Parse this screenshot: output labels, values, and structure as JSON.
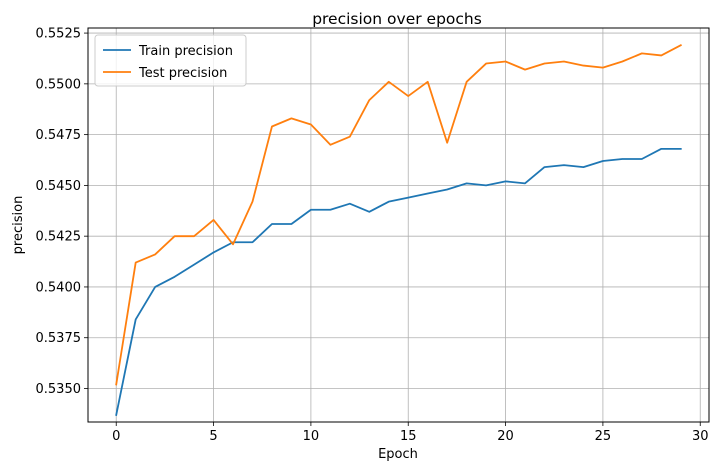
{
  "chart_data": {
    "type": "line",
    "title": "precision over epochs",
    "xlabel": "Epoch",
    "ylabel": "precision",
    "xlim": [
      -1.45,
      30.45
    ],
    "ylim": [
      0.53335,
      0.55275
    ],
    "xticks": [
      0,
      5,
      10,
      15,
      20,
      25,
      30
    ],
    "xtick_labels": [
      "0",
      "5",
      "10",
      "15",
      "20",
      "25",
      "30"
    ],
    "yticks": [
      0.535,
      0.5375,
      0.54,
      0.5425,
      0.545,
      0.5475,
      0.55,
      0.5525
    ],
    "ytick_labels": [
      "0.5350",
      "0.5375",
      "0.5400",
      "0.5425",
      "0.5450",
      "0.5475",
      "0.5500",
      "0.5525"
    ],
    "grid": true,
    "legend_position": "top-left",
    "x": [
      0,
      1,
      2,
      3,
      4,
      5,
      6,
      7,
      8,
      9,
      10,
      11,
      12,
      13,
      14,
      15,
      16,
      17,
      18,
      19,
      20,
      21,
      22,
      23,
      24,
      25,
      26,
      27,
      28,
      29
    ],
    "series": [
      {
        "name": "Train precision",
        "color": "#1f77b4",
        "values": [
          0.5337,
          0.5384,
          0.54,
          0.5405,
          0.5411,
          0.5417,
          0.5422,
          0.5422,
          0.5431,
          0.5431,
          0.5438,
          0.5438,
          0.5441,
          0.5437,
          0.5442,
          0.5444,
          0.5446,
          0.5448,
          0.5451,
          0.545,
          0.5452,
          0.5451,
          0.5459,
          0.546,
          0.5459,
          0.5462,
          0.5463,
          0.5463,
          0.5468,
          0.5468
        ]
      },
      {
        "name": "Test precision",
        "color": "#ff7f0e",
        "values": [
          0.5352,
          0.5412,
          0.5416,
          0.5425,
          0.5425,
          0.5433,
          0.5421,
          0.5442,
          0.5479,
          0.5483,
          0.548,
          0.547,
          0.5474,
          0.5492,
          0.5501,
          0.5494,
          0.5501,
          0.5471,
          0.5501,
          0.551,
          0.5511,
          0.5507,
          0.551,
          0.5511,
          0.5509,
          0.5508,
          0.5511,
          0.5515,
          0.5514,
          0.5519
        ]
      }
    ]
  }
}
